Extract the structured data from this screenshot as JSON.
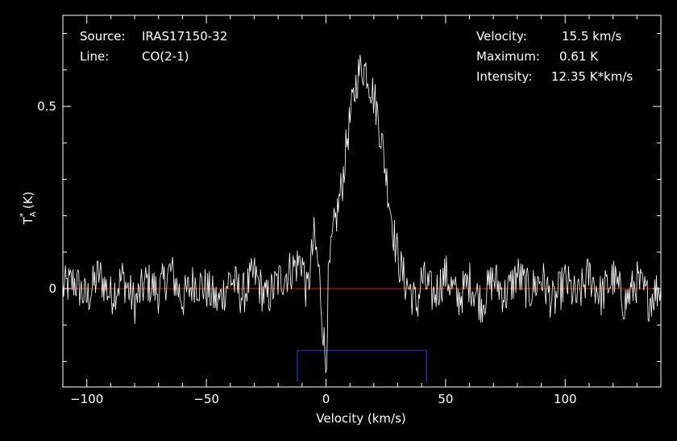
{
  "info": {
    "source_label": "Source:",
    "source_value": "IRAS17150-32",
    "line_label": "Line:",
    "line_value": "CO(2-1)",
    "velocity_label": "Velocity:",
    "velocity_value": "15.5 km/s",
    "maximum_label": "Maximum:",
    "maximum_value": "0.61 K",
    "intensity_label": "Intensity:",
    "intensity_value": "12.35 K*km/s"
  },
  "colors": {
    "background": "#000000",
    "spectrum": "#ffffff",
    "baseline": "#cc2222",
    "window": "#2233dd"
  },
  "chart_data": {
    "type": "line",
    "xlabel": "Velocity (km/s)",
    "ylabel": "T_A^* (K)",
    "ylabel_main": "T",
    "ylabel_sub": "A",
    "ylabel_sup": "*",
    "ylabel_unit": " (K)",
    "xlim": [
      -110,
      140
    ],
    "ylim": [
      -0.27,
      0.75
    ],
    "x_ticks": [
      -100,
      -50,
      0,
      50,
      100
    ],
    "x_tick_labels": [
      "−100",
      "−50",
      "0",
      "50",
      "100"
    ],
    "y_ticks": [
      0,
      0.5
    ],
    "y_tick_labels": [
      "0",
      "0.5"
    ],
    "baseline_y": 0,
    "integration_window": {
      "x_start": -12,
      "x_end": 42,
      "y": -0.17
    },
    "series": [
      {
        "x": [
          -110,
          -105,
          -100,
          -95,
          -90,
          -85,
          -80,
          -75,
          -70,
          -65,
          -60,
          -55,
          -50,
          -45,
          -40,
          -35,
          -30,
          -25,
          -20,
          -15,
          -10,
          -8,
          -5,
          -3,
          -1,
          0,
          1,
          3,
          5,
          7,
          9,
          11,
          13,
          15,
          17,
          19,
          21,
          23,
          25,
          27,
          29,
          31,
          33,
          35,
          38,
          40,
          45,
          50,
          55,
          60,
          65,
          70,
          75,
          80,
          85,
          90,
          95,
          100,
          105,
          110,
          115,
          120,
          125,
          130,
          135,
          140
        ],
        "values": [
          0.0,
          0.02,
          -0.03,
          0.04,
          -0.02,
          0.03,
          -0.04,
          0.02,
          -0.01,
          0.05,
          -0.03,
          0.02,
          0.0,
          -0.04,
          0.03,
          -0.02,
          0.04,
          -0.03,
          0.02,
          0.05,
          0.08,
          -0.02,
          0.14,
          0.05,
          -0.13,
          -0.22,
          0.02,
          0.15,
          0.22,
          0.3,
          0.42,
          0.5,
          0.58,
          0.61,
          0.6,
          0.55,
          0.5,
          0.42,
          0.32,
          0.22,
          0.12,
          0.06,
          0.02,
          0.0,
          -0.05,
          0.03,
          -0.02,
          0.04,
          -0.03,
          0.02,
          -0.04,
          0.03,
          -0.02,
          0.04,
          -0.01,
          0.03,
          -0.04,
          0.02,
          -0.03,
          0.04,
          -0.02,
          0.03,
          -0.04,
          0.02,
          -0.03,
          0.01
        ]
      }
    ]
  }
}
